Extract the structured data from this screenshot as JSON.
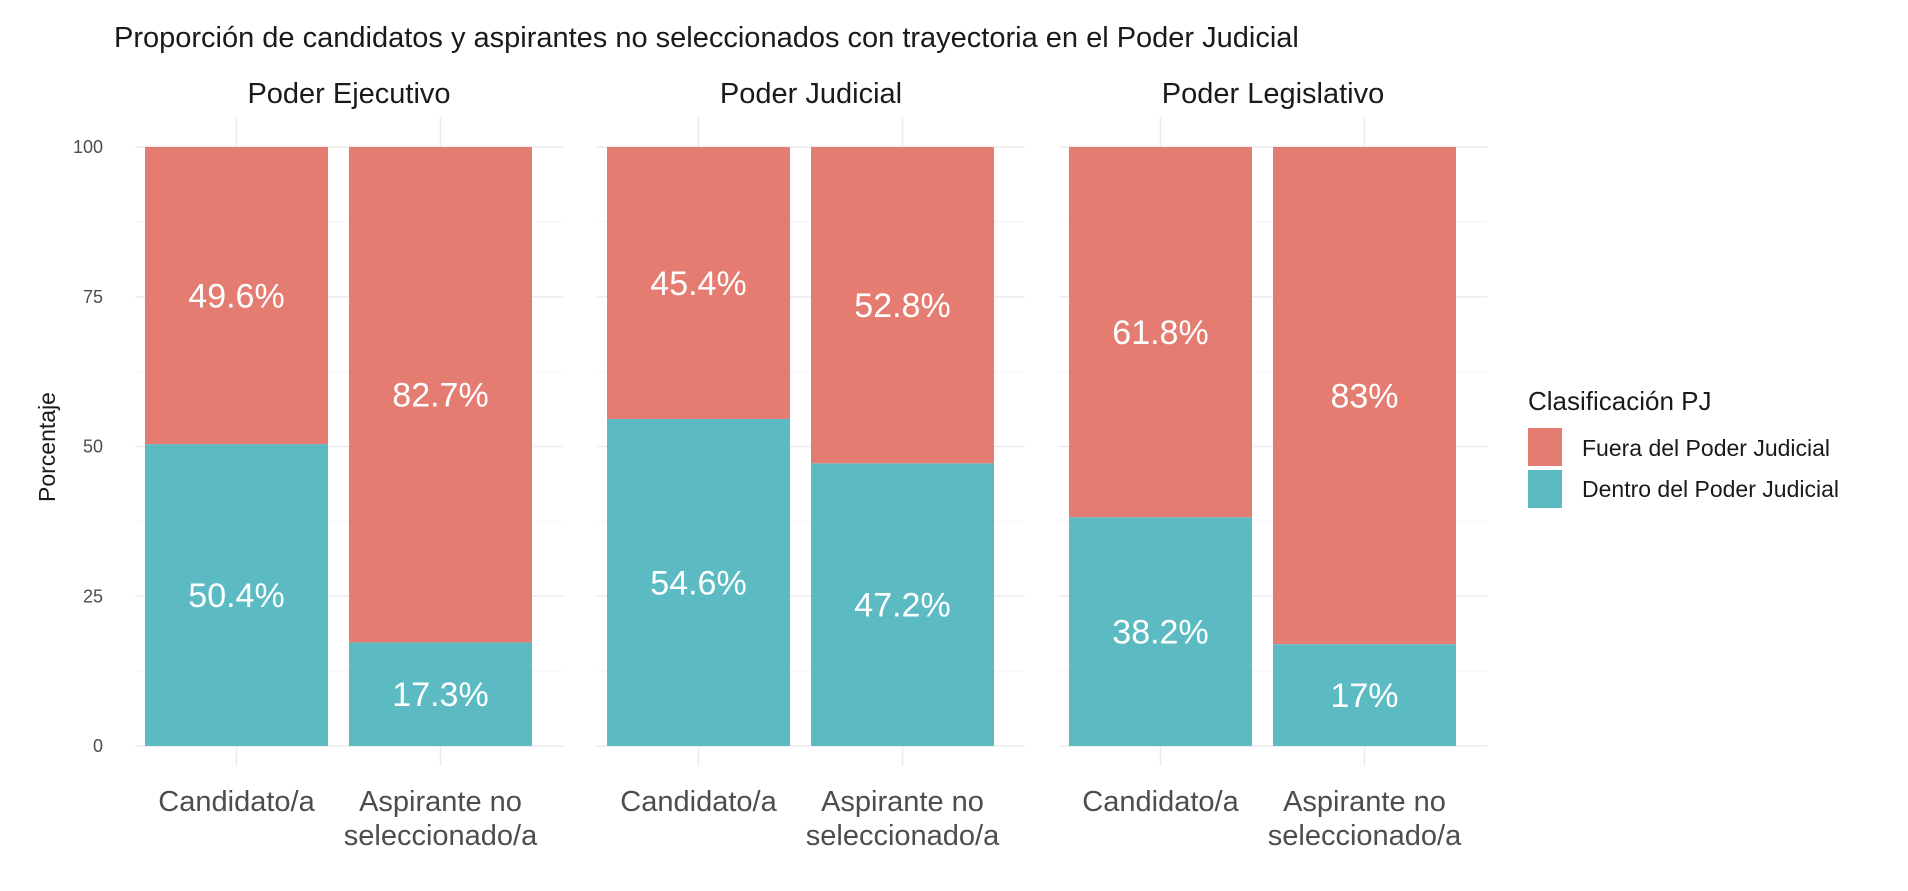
{
  "chart_data": {
    "type": "bar",
    "stacked": true,
    "title": "Proporción de candidatos y aspirantes no seleccionados con trayectoria en el Poder Judicial",
    "ylabel": "Porcentaje",
    "xlabel": "",
    "ylim": [
      0,
      100
    ],
    "yticks": [
      "0",
      "25",
      "50",
      "75",
      "100"
    ],
    "ytick_values": [
      0,
      25,
      50,
      75,
      100
    ],
    "grid": true,
    "legend": {
      "title": "Clasificación PJ",
      "position": "right",
      "items": [
        {
          "label": "Fuera del Poder Judicial",
          "color": "#E47C72"
        },
        {
          "label": "Dentro del Poder Judicial",
          "color": "#5CBBC2"
        }
      ]
    },
    "categories": [
      {
        "line1": "Candidato/a",
        "line2": ""
      },
      {
        "line1": "Aspirante no",
        "line2": "seleccionado/a"
      }
    ],
    "facets": [
      {
        "name": "Poder Ejecutivo",
        "bars": [
          {
            "dentro": 50.4,
            "fuera": 49.6,
            "dentro_label": "50.4%",
            "fuera_label": "49.6%"
          },
          {
            "dentro": 17.3,
            "fuera": 82.7,
            "dentro_label": "17.3%",
            "fuera_label": "82.7%"
          }
        ]
      },
      {
        "name": "Poder Judicial",
        "bars": [
          {
            "dentro": 54.6,
            "fuera": 45.4,
            "dentro_label": "54.6%",
            "fuera_label": "45.4%"
          },
          {
            "dentro": 47.2,
            "fuera": 52.8,
            "dentro_label": "47.2%",
            "fuera_label": "52.8%"
          }
        ]
      },
      {
        "name": "Poder Legislativo",
        "bars": [
          {
            "dentro": 38.2,
            "fuera": 61.8,
            "dentro_label": "38.2%",
            "fuera_label": "61.8%"
          },
          {
            "dentro": 17.0,
            "fuera": 83.0,
            "dentro_label": "17%",
            "fuera_label": "83%"
          }
        ]
      }
    ]
  }
}
